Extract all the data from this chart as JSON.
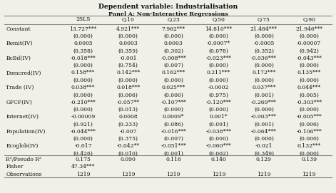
{
  "title": "Dependent variable: Industrialisation",
  "subtitle": "Panel A: Non-Interactive Regressions",
  "columns": [
    "2SLS",
    "Q.10",
    "Q.25",
    "Q.50",
    "Q.75",
    "Q.90"
  ],
  "rows": [
    {
      "label": "Constant",
      "values": [
        "13.727***",
        "4.921***",
        "7.962***",
        "14.810***",
        "21.484***",
        "21.946***"
      ],
      "pvalues": [
        "(0.000)",
        "(0.000)",
        "(0.000)",
        "(0.000)",
        "(0.000)",
        "(0.000)"
      ]
    },
    {
      "label": "Remit(IV)",
      "values": [
        "0.0005",
        "0.0003",
        "0.0003",
        "-0.0007*",
        "-0.0005",
        "-0.00007"
      ],
      "pvalues": [
        "(0.358)",
        "(0.359)",
        "(0.302)",
        "(0.078)",
        "(0.352)",
        "(0.942)"
      ]
    },
    {
      "label": "BcBd(IV)",
      "values": [
        "-0.018***",
        "-0.001",
        "-0.008***",
        "-0.023***",
        "-0.036***",
        "-0.043***"
      ],
      "pvalues": [
        "(0.000)",
        "(0.754)",
        "(0.007)",
        "(0.000)",
        "(0.000)",
        "(0.000)"
      ]
    },
    {
      "label": "Domcred(IV)",
      "values": [
        "0.158***",
        "0.142***",
        "0.162***",
        "0.211***",
        "0.172***",
        "0.135***"
      ],
      "pvalues": [
        "(0.000)",
        "(0.000)",
        "(0.000)",
        "(0.000)",
        "(0.000)",
        "(0.000)"
      ]
    },
    {
      "label": "Trade (IV)",
      "values": [
        "0.038***",
        "0.018***",
        "0.025***",
        "-0.0002",
        "0.037***",
        "0.044***"
      ],
      "pvalues": [
        "(0.000)",
        "(0.006)",
        "(0.000)",
        "(0.975)",
        "(0.001)",
        "(0.005)"
      ]
    },
    {
      "label": "GFCF(IV)",
      "values": [
        "-0.210***",
        "-0.057**",
        "-0.107***",
        "-0.120***",
        "-0.269***",
        "-0.303***"
      ],
      "pvalues": [
        "(0.000)",
        "(0.013)",
        "(0.000)",
        "(0.000)",
        "(0.000)",
        "(0.000)"
      ]
    },
    {
      "label": "Internet(IV)",
      "values": [
        "-0.00009",
        "0.0008",
        "0.0009*",
        "0.001*",
        "-0.003***",
        "-0.005***"
      ],
      "pvalues": [
        "(0.921)",
        "(0.233)",
        "(0.086)",
        "(0.091)",
        "(0.001)",
        "(0.006)"
      ]
    },
    {
      "label": "Population(IV)",
      "values": [
        "-0.044***",
        "-0.007",
        "-0.016***",
        "-0.038***",
        "-0.064***",
        "-0.106***"
      ],
      "pvalues": [
        "(0.000)",
        "(0.375)",
        "(0.007)",
        "(0.000)",
        "(0.000)",
        "(0.000)"
      ]
    },
    {
      "label": "Ecoglob(IV)",
      "values": [
        "-0.017",
        "-0.042**",
        "-0.051***",
        "-0.060***",
        "-0.021",
        "0.132***"
      ],
      "pvalues": [
        "(0.426)",
        "(0.010)",
        "(0.001)",
        "(0.002)",
        "(0.349)",
        "(0.000)"
      ]
    }
  ],
  "footer": [
    {
      "label": "R²/Pseudo R²",
      "values": [
        "0.175",
        "0.090",
        "0.116",
        "0.140",
        "0.129",
        "0.139"
      ]
    },
    {
      "label": "Fisher",
      "values": [
        "47.34***",
        "",
        "",
        "",
        "",
        ""
      ]
    },
    {
      "label": "Observations",
      "values": [
        "1219",
        "1219",
        "1219",
        "1219",
        "1219",
        "1219"
      ]
    }
  ],
  "bg_color": "#f0f0e8",
  "line_color": "#888888",
  "text_color": "#111111",
  "font_size": 5.5
}
